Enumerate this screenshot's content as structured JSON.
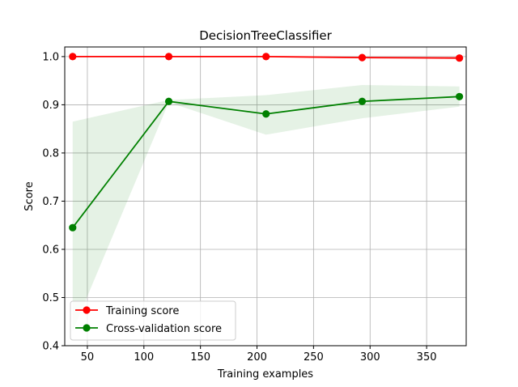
{
  "chart_data": {
    "type": "line",
    "title": "DecisionTreeClassifier",
    "xlabel": "Training examples",
    "ylabel": "Score",
    "xlim": [
      30,
      385
    ],
    "ylim": [
      0.4,
      1.02
    ],
    "xticks": [
      50,
      100,
      150,
      200,
      250,
      300,
      350
    ],
    "yticks": [
      0.4,
      0.5,
      0.6,
      0.7,
      0.8,
      0.9,
      1.0
    ],
    "x_tick_labels": [
      "50",
      "100",
      "150",
      "200",
      "250",
      "300",
      "350"
    ],
    "y_tick_labels": [
      "0.4",
      "0.5",
      "0.6",
      "0.7",
      "0.8",
      "0.9",
      "1.0"
    ],
    "grid": true,
    "legend_position": "lower-left",
    "x": [
      37,
      122,
      208,
      293,
      379
    ],
    "series": [
      {
        "name": "Training score",
        "color": "#ff0000",
        "values": [
          1.0,
          1.0,
          1.0,
          0.998,
          0.997
        ],
        "band_upper": [
          1.0,
          1.0,
          1.0,
          1.0,
          1.0
        ],
        "band_lower": [
          1.0,
          1.0,
          1.0,
          0.996,
          0.995
        ]
      },
      {
        "name": "Cross-validation score",
        "color": "#008000",
        "values": [
          0.645,
          0.907,
          0.881,
          0.907,
          0.917
        ],
        "band_upper": [
          0.865,
          0.91,
          0.92,
          0.941,
          0.938
        ],
        "band_lower": [
          0.43,
          0.905,
          0.838,
          0.872,
          0.896
        ]
      }
    ]
  }
}
